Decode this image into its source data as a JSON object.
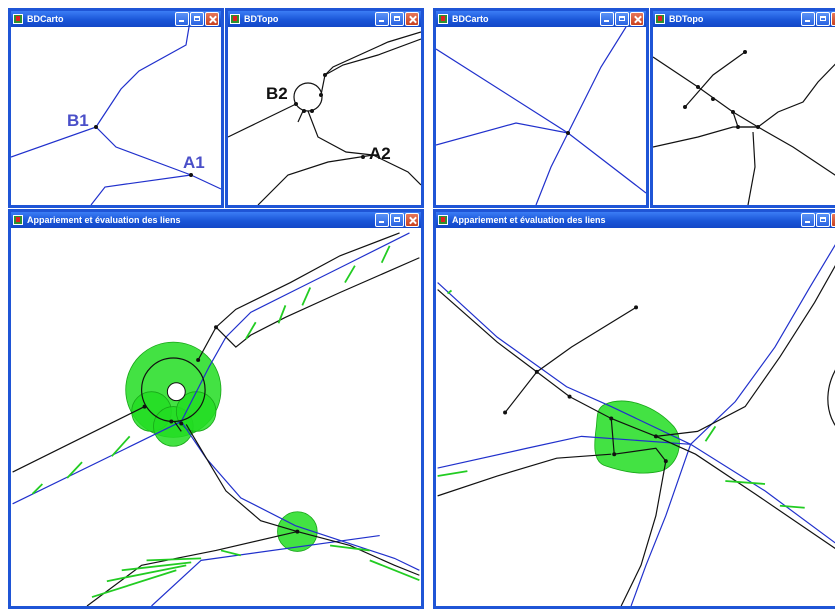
{
  "windows": {
    "bdcarto_left": {
      "title": "BDCarto"
    },
    "bdtopo_left": {
      "title": "BDTopo"
    },
    "match_left": {
      "title": "Appariement et évaluation des liens"
    },
    "bdcarto_right": {
      "title": "BDCarto"
    },
    "bdtopo_right": {
      "title": "BDTopo"
    },
    "match_right": {
      "title": "Appariement et évaluation des liens"
    }
  },
  "labels": {
    "b1": "B1",
    "a1": "A1",
    "b2": "B2",
    "a2": "A2"
  },
  "colors": {
    "titlebar": "#1a56d8",
    "carto_lines": "#2030cc",
    "topo_lines": "#111111",
    "match_zone": "#22dd22",
    "text_blue": "#4a4fc8"
  }
}
